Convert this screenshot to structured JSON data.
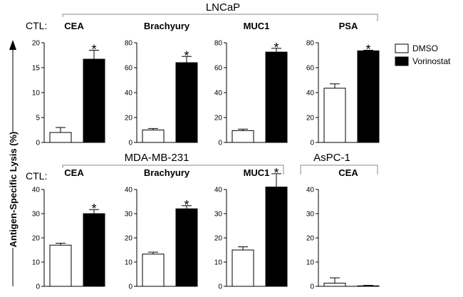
{
  "ylabel": "Antigen-Specific Lysis (%)",
  "ctl_label": "CTL:",
  "legend": {
    "items": [
      {
        "label": "DMSO",
        "fill": "#ffffff"
      },
      {
        "label": "Vorinostat",
        "fill": "#000000"
      }
    ]
  },
  "groups": [
    {
      "label": "LNCaP"
    },
    {
      "label": "MDA-MB-231"
    },
    {
      "label": "AsPC-1"
    }
  ],
  "chart_data": [
    {
      "type": "bar",
      "title": "CEA",
      "group": "LNCaP",
      "categories": [
        "DMSO",
        "Vorinostat"
      ],
      "values": [
        2.0,
        16.7
      ],
      "errors": [
        1.0,
        1.8
      ],
      "significant": [
        false,
        true
      ],
      "significance_mark": "*",
      "ylim": [
        0,
        20
      ],
      "yticks": [
        "0",
        "5",
        "10",
        "15",
        "20"
      ]
    },
    {
      "type": "bar",
      "title": "Brachyury",
      "group": "LNCaP",
      "categories": [
        "DMSO",
        "Vorinostat"
      ],
      "values": [
        10.0,
        64.0
      ],
      "errors": [
        1.2,
        5.0
      ],
      "significant": [
        false,
        true
      ],
      "significance_mark": "*",
      "ylim": [
        0,
        80
      ],
      "yticks": [
        "0",
        "20",
        "40",
        "60",
        "80"
      ]
    },
    {
      "type": "bar",
      "title": "MUC1",
      "group": "LNCaP",
      "categories": [
        "DMSO",
        "Vorinostat"
      ],
      "values": [
        9.5,
        72.5
      ],
      "errors": [
        1.2,
        3.0
      ],
      "significant": [
        false,
        true
      ],
      "significance_mark": "*",
      "ylim": [
        0,
        80
      ],
      "yticks": [
        "0",
        "20",
        "40",
        "60",
        "80"
      ]
    },
    {
      "type": "bar",
      "title": "PSA",
      "group": "LNCaP",
      "categories": [
        "DMSO",
        "Vorinostat"
      ],
      "values": [
        43.5,
        73.5
      ],
      "errors": [
        3.5,
        0.5
      ],
      "significant": [
        false,
        true
      ],
      "significance_mark": "*",
      "ylim": [
        0,
        80
      ],
      "yticks": [
        "0",
        "20",
        "40",
        "60",
        "80"
      ]
    },
    {
      "type": "bar",
      "title": "CEA",
      "group": "MDA-MB-231",
      "categories": [
        "DMSO",
        "Vorinostat"
      ],
      "values": [
        17.0,
        30.0
      ],
      "errors": [
        0.8,
        1.7
      ],
      "significant": [
        false,
        true
      ],
      "significance_mark": "*",
      "ylim": [
        0,
        40
      ],
      "yticks": [
        "0",
        "10",
        "20",
        "30",
        "40"
      ]
    },
    {
      "type": "bar",
      "title": "Brachyury",
      "group": "MDA-MB-231",
      "categories": [
        "DMSO",
        "Vorinostat"
      ],
      "values": [
        13.3,
        32.0
      ],
      "errors": [
        0.8,
        1.3
      ],
      "significant": [
        false,
        true
      ],
      "significance_mark": "*",
      "ylim": [
        0,
        40
      ],
      "yticks": [
        "0",
        "10",
        "20",
        "30",
        "40"
      ]
    },
    {
      "type": "bar",
      "title": "MUC1",
      "group": "MDA-MB-231",
      "categories": [
        "DMSO",
        "Vorinostat"
      ],
      "values": [
        15.0,
        41.0
      ],
      "errors": [
        1.3,
        5.5
      ],
      "significant": [
        false,
        true
      ],
      "significance_mark": "*",
      "ylim": [
        0,
        40
      ],
      "yticks": [
        "0",
        "10",
        "20",
        "30",
        "40"
      ]
    },
    {
      "type": "bar",
      "title": "CEA",
      "group": "AsPC-1",
      "categories": [
        "DMSO",
        "Vorinostat"
      ],
      "values": [
        1.3,
        0.2
      ],
      "errors": [
        2.2,
        0.2
      ],
      "significant": [
        false,
        false
      ],
      "significance_mark": "*",
      "ylim": [
        0,
        40
      ],
      "yticks": [
        "0",
        "10",
        "20",
        "30",
        "40"
      ]
    }
  ]
}
